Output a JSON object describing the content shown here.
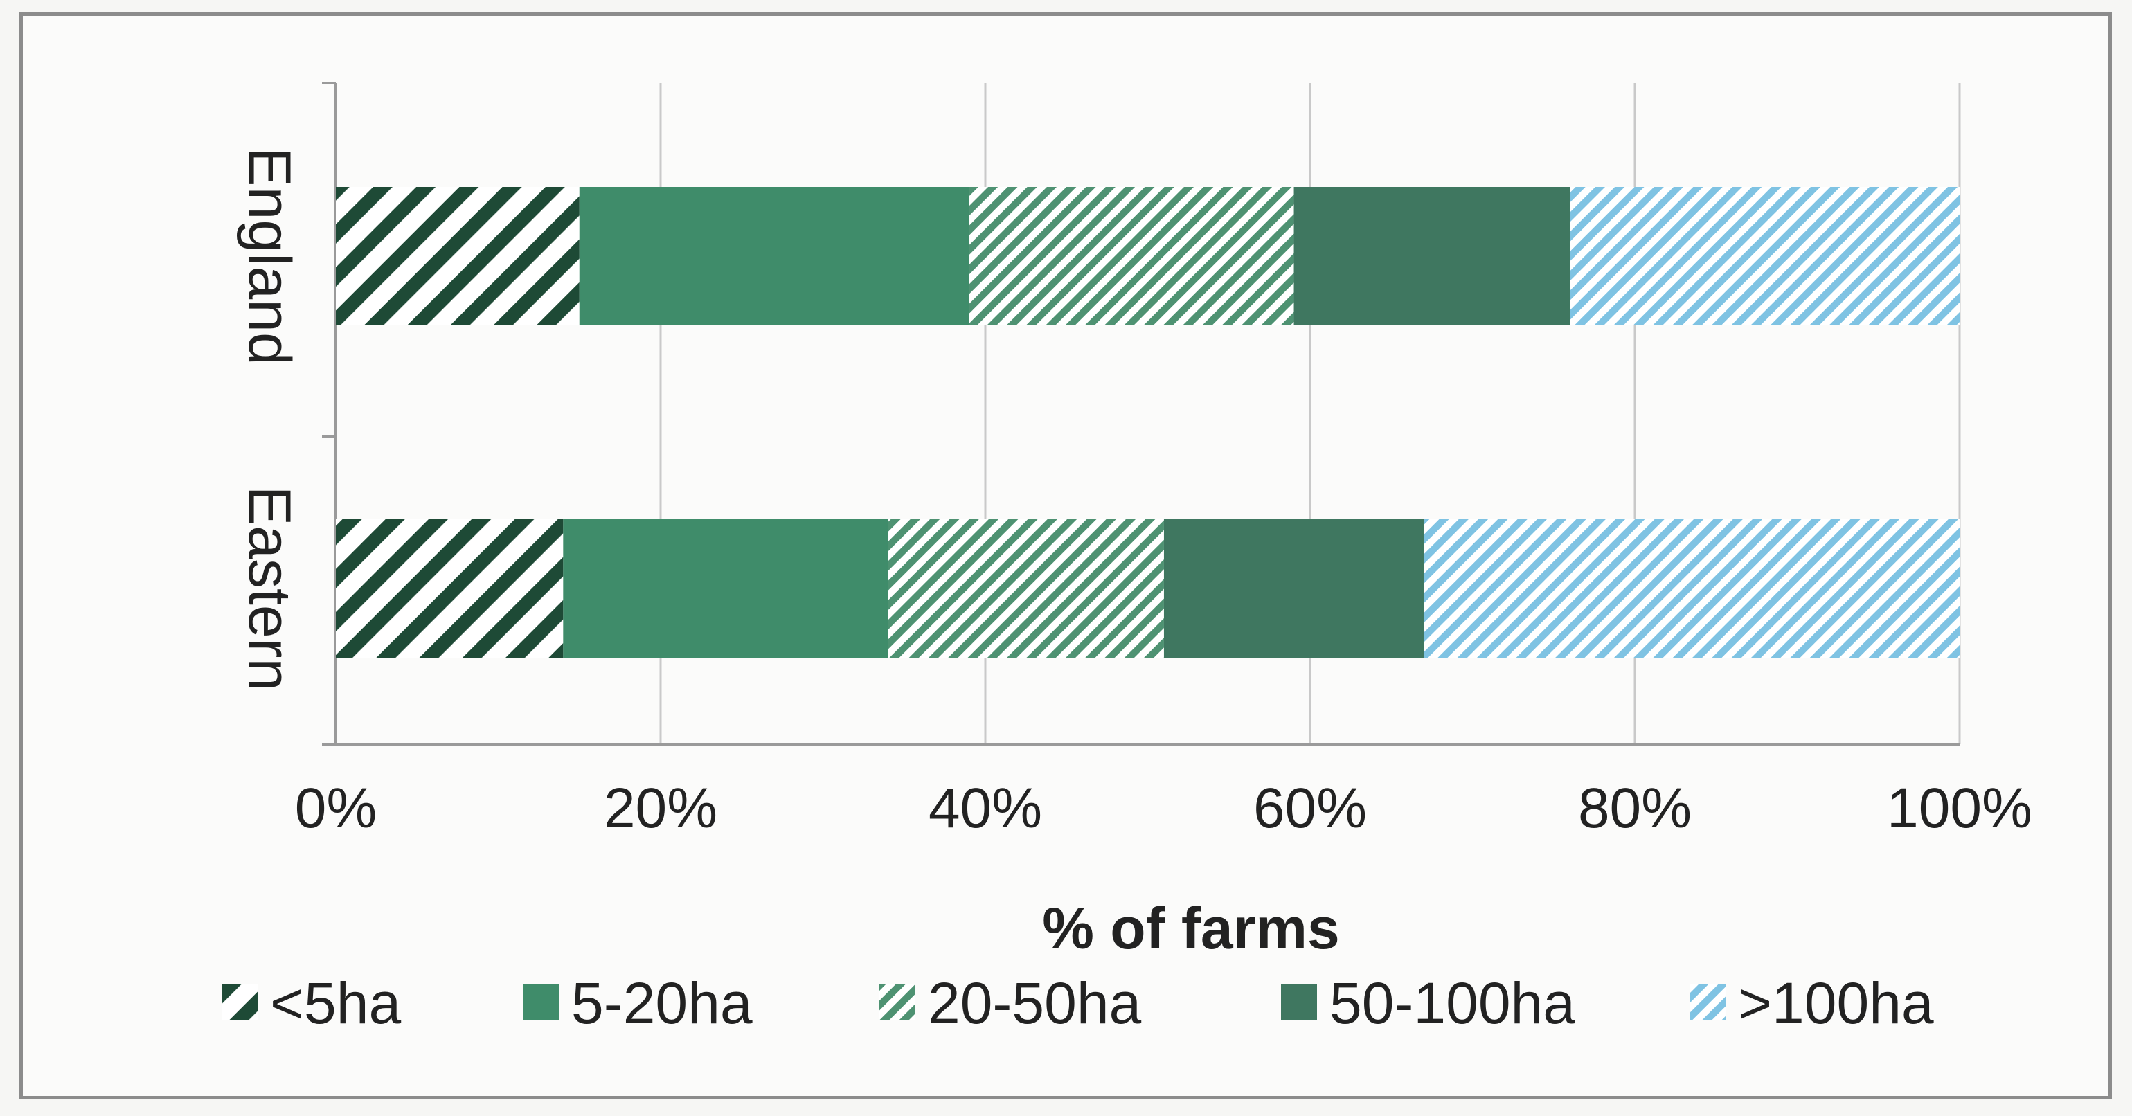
{
  "chart_data": {
    "type": "bar",
    "orientation": "horizontal",
    "stacked": "percent",
    "categories": [
      "England",
      "Eastern"
    ],
    "series": [
      {
        "name": "<5ha",
        "values": [
          15,
          14
        ],
        "color": "#1e4a36",
        "pattern": "wide-diagonal-stripes"
      },
      {
        "name": "5-20ha",
        "values": [
          24,
          20
        ],
        "color": "#3f8c6a",
        "pattern": "solid"
      },
      {
        "name": "20-50ha",
        "values": [
          20,
          17
        ],
        "color": "#4e9272",
        "pattern": "fine-diagonal-stripes"
      },
      {
        "name": "50-100ha",
        "values": [
          17,
          16
        ],
        "color": "#3f7760",
        "pattern": "solid"
      },
      {
        "name": ">100ha",
        "values": [
          24,
          33
        ],
        "color": "#7fc3e3",
        "pattern": "fine-diagonal-stripes"
      }
    ],
    "xlabel": "% of farms",
    "ylabel": "",
    "xlim": [
      0,
      100
    ],
    "x_ticks": [
      "0%",
      "20%",
      "40%",
      "60%",
      "80%",
      "100%"
    ],
    "grid": "vertical",
    "legend_position": "bottom"
  }
}
